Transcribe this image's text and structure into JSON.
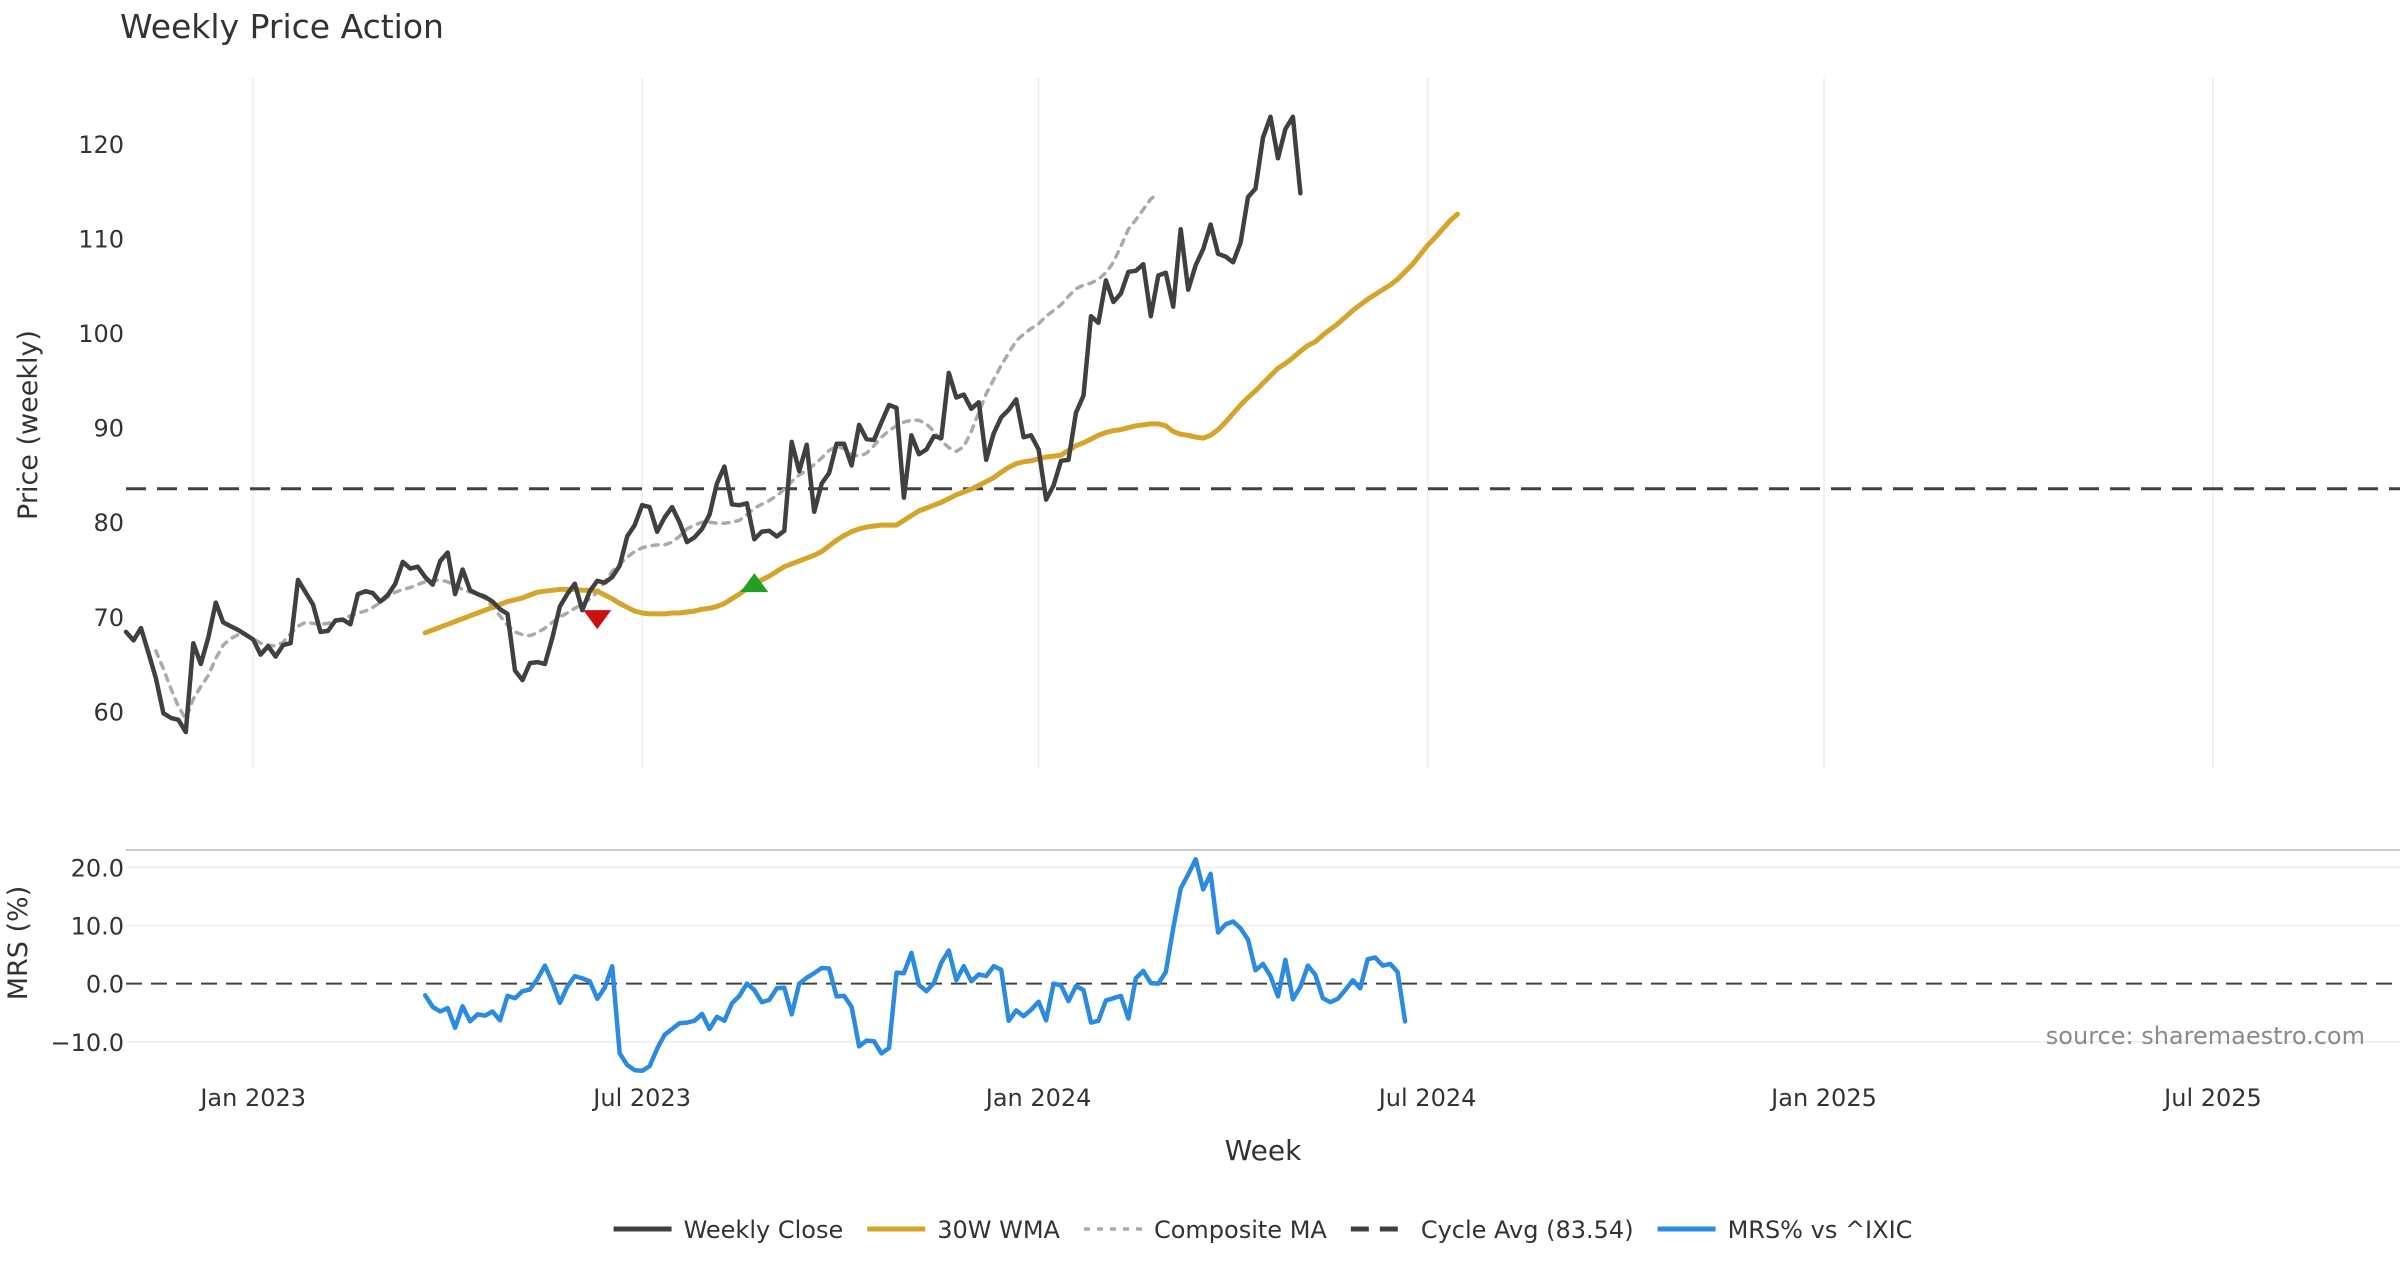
{
  "chart_data": {
    "type": "line",
    "title": "Weekly Price Action",
    "xlabel": "Week",
    "x_tick_labels": [
      "Jan 2023",
      "Jul 2023",
      "Jan 2024",
      "Jul 2024",
      "Jan 2025",
      "Jul 2025"
    ],
    "x_tick_weeks": [
      6,
      58,
      111,
      163,
      216,
      268
    ],
    "week_range": [
      -11,
      293
    ],
    "source_note": "source: sharemaestro.com",
    "legend_position": "bottom-center",
    "price_panel": {
      "ylabel": "Price (weekly)",
      "ylim": [
        54,
        127
      ],
      "yticks": [
        60,
        70,
        80,
        90,
        100,
        110,
        120
      ],
      "cycle_avg_value": 83.54,
      "series": [
        {
          "name": "Weekly Close",
          "color": "#404040",
          "start_week": -11,
          "values": [
            68.4,
            67.5,
            68.8,
            66.2,
            63.5,
            59.8,
            59.3,
            59.1,
            57.8,
            67.2,
            65.0,
            67.8,
            71.5,
            69.4,
            69.0,
            68.6,
            68.1,
            67.6,
            66.0,
            66.9,
            65.8,
            67.0,
            67.2,
            73.9,
            72.6,
            71.3,
            68.4,
            68.5,
            69.6,
            69.7,
            69.2,
            72.4,
            72.7,
            72.5,
            71.6,
            72.3,
            73.5,
            75.8,
            75.1,
            75.3,
            74.2,
            73.4,
            75.9,
            76.8,
            72.4,
            75.0,
            72.8,
            72.4,
            72.1,
            71.6,
            70.8,
            70.3,
            64.3,
            63.3,
            65.1,
            65.2,
            65.0,
            67.8,
            71.1,
            72.4,
            73.5,
            70.7,
            72.7,
            73.8,
            73.6,
            74.2,
            75.4,
            78.5,
            79.7,
            81.8,
            81.6,
            79.0,
            80.5,
            81.6,
            80.0,
            77.9,
            78.4,
            79.3,
            80.8,
            84.1,
            85.9,
            81.9,
            81.8,
            82.0,
            78.2,
            79.0,
            79.1,
            78.5,
            79.1,
            88.5,
            85.4,
            88.2,
            81.1,
            84.1,
            85.2,
            88.3,
            88.3,
            86.0,
            90.3,
            88.8,
            88.7,
            90.6,
            92.4,
            92.1,
            82.6,
            89.2,
            87.2,
            87.7,
            89.1,
            88.9,
            95.8,
            93.2,
            93.5,
            92.0,
            92.7,
            86.6,
            89.4,
            91.1,
            91.9,
            93.0,
            89.0,
            89.2,
            87.7,
            82.4,
            83.9,
            86.5,
            86.6,
            91.6,
            93.4,
            101.8,
            101.1,
            105.6,
            103.3,
            104.2,
            106.5,
            106.6,
            107.3,
            101.8,
            106.1,
            106.4,
            102.8,
            111.0,
            104.6,
            107.2,
            108.9,
            111.5,
            108.4,
            108.1,
            107.5,
            109.6,
            114.4,
            115.3,
            120.7,
            122.9,
            118.5,
            121.6,
            122.9,
            114.8
          ]
        },
        {
          "name": "30W WMA",
          "color": "#d4a52a",
          "start_week": 29,
          "values": [
            68.3,
            68.6,
            68.9,
            69.2,
            69.5,
            69.8,
            70.1,
            70.4,
            70.7,
            71.0,
            71.3,
            71.6,
            71.8,
            72.0,
            72.3,
            72.6,
            72.7,
            72.8,
            72.9,
            72.9,
            72.9,
            72.8,
            72.8,
            72.7,
            72.3,
            71.9,
            71.4,
            71.0,
            70.6,
            70.4,
            70.3,
            70.3,
            70.3,
            70.4,
            70.4,
            70.5,
            70.6,
            70.8,
            70.9,
            71.1,
            71.4,
            71.9,
            72.4,
            73.0,
            73.5,
            73.9,
            74.3,
            74.8,
            75.3,
            75.6,
            75.9,
            76.2,
            76.5,
            76.9,
            77.5,
            78.1,
            78.6,
            79.0,
            79.3,
            79.5,
            79.6,
            79.7,
            79.7,
            79.7,
            80.2,
            80.7,
            81.2,
            81.5,
            81.8,
            82.1,
            82.5,
            82.9,
            83.2,
            83.5,
            83.9,
            84.3,
            84.7,
            85.3,
            85.8,
            86.2,
            86.4,
            86.5,
            86.7,
            86.9,
            87.0,
            87.1,
            87.6,
            88.1,
            88.4,
            88.8,
            89.2,
            89.5,
            89.7,
            89.8,
            90.0,
            90.2,
            90.3,
            90.4,
            90.4,
            90.2,
            89.6,
            89.3,
            89.2,
            89.0,
            88.9,
            89.2,
            89.8,
            90.6,
            91.5,
            92.4,
            93.2,
            93.9,
            94.7,
            95.5,
            96.3,
            96.8,
            97.4,
            98.1,
            98.7,
            99.1,
            99.8,
            100.4,
            101.0,
            101.7,
            102.4,
            103.0,
            103.6,
            104.1,
            104.6,
            105.1,
            105.7,
            106.5,
            107.3,
            108.3,
            109.3,
            110.1,
            111.0,
            111.9,
            112.6
          ]
        },
        {
          "name": "Composite MA",
          "color": "#aaaaaa",
          "start_week": -7,
          "values": [
            66.4,
            64.5,
            62.4,
            60.5,
            59.2,
            61.3,
            62.6,
            63.8,
            65.6,
            67.0,
            67.7,
            68.1,
            68.1,
            67.7,
            67.2,
            67.0,
            66.9,
            67.3,
            68.2,
            69.0,
            69.4,
            69.3,
            69.2,
            69.3,
            69.5,
            69.8,
            70.1,
            70.4,
            70.6,
            71.0,
            71.5,
            72.1,
            72.6,
            72.9,
            73.1,
            73.4,
            73.7,
            73.8,
            73.9,
            73.7,
            73.3,
            72.9,
            72.6,
            72.4,
            71.9,
            71.1,
            70.1,
            69.1,
            68.4,
            68.1,
            68.0,
            68.3,
            68.8,
            69.4,
            70.0,
            70.4,
            70.9,
            71.3,
            71.9,
            72.6,
            73.7,
            74.8,
            75.6,
            76.3,
            76.9,
            77.3,
            77.5,
            77.6,
            77.6,
            77.9,
            78.5,
            79.3,
            79.7,
            80.0,
            80.0,
            79.9,
            79.9,
            80.0,
            80.2,
            80.8,
            81.5,
            81.9,
            82.3,
            82.8,
            83.5,
            84.3,
            85.0,
            85.5,
            86.1,
            86.8,
            87.6,
            88.0,
            87.8,
            87.2,
            87.0,
            87.3,
            88.1,
            89.0,
            89.7,
            90.2,
            90.6,
            90.8,
            90.8,
            90.4,
            89.6,
            88.6,
            87.9,
            87.5,
            88.0,
            89.6,
            91.6,
            93.6,
            95.1,
            96.6,
            97.9,
            99.2,
            99.9,
            100.5,
            101.0,
            101.8,
            102.4,
            103.0,
            103.9,
            104.7,
            105.1,
            105.3,
            105.7,
            106.4,
            107.5,
            109.2,
            111.0,
            112.0,
            113.1,
            114.2,
            114.8
          ]
        }
      ],
      "markers": [
        {
          "name": "sell-signal",
          "shape": "triangle-down",
          "color": "#cc1111",
          "week": 52,
          "value": 69.8
        },
        {
          "name": "buy-signal",
          "shape": "triangle-up",
          "color": "#22a022",
          "week": 73,
          "value": 73.5
        }
      ]
    },
    "mrs_panel": {
      "ylabel": "MRS (%)",
      "ylim": [
        -14,
        23
      ],
      "yticks": [
        -10.0,
        0.0,
        10.0,
        20.0
      ],
      "ytick_labels": [
        "−10.0",
        "0.0",
        "10.0",
        "20.0"
      ],
      "series": [
        {
          "name": "MRS% vs ^IXIC",
          "color": "#2b8be0",
          "start_week": 29,
          "values": [
            -2.0,
            -4.0,
            -4.8,
            -4.2,
            -7.6,
            -3.9,
            -6.5,
            -5.3,
            -5.5,
            -4.8,
            -6.3,
            -2.1,
            -2.5,
            -1.3,
            -1.0,
            0.8,
            3.1,
            0.2,
            -3.3,
            -0.5,
            1.3,
            0.9,
            0.4,
            -2.6,
            -0.7,
            3.0,
            -12.0,
            -14.0,
            -14.9,
            -15.0,
            -14.2,
            -11.2,
            -8.8,
            -7.8,
            -6.8,
            -6.7,
            -6.4,
            -5.2,
            -7.8,
            -5.7,
            -6.4,
            -3.4,
            -2.1,
            0.0,
            -1.1,
            -3.2,
            -2.8,
            -0.8,
            -0.7,
            -5.3,
            0.0,
            1.0,
            1.8,
            2.7,
            2.6,
            -2.2,
            -2.1,
            -4.0,
            -10.8,
            -9.8,
            -9.9,
            -12.0,
            -11.1,
            1.9,
            1.8,
            5.3,
            -0.2,
            -1.3,
            0.1,
            3.6,
            5.7,
            0.6,
            3.0,
            0.4,
            1.6,
            1.3,
            3.0,
            2.4,
            -6.4,
            -4.6,
            -5.6,
            -4.5,
            -3.1,
            -6.3,
            0.0,
            -0.3,
            -3.0,
            -0.4,
            -1.1,
            -6.7,
            -6.4,
            -2.9,
            -2.5,
            -2.1,
            -6.0,
            0.9,
            2.2,
            0.1,
            0.0,
            2.0,
            9.5,
            16.4,
            18.8,
            21.4,
            16.2,
            18.9,
            8.8,
            10.2,
            10.7,
            9.5,
            7.6,
            2.3,
            3.4,
            1.3,
            -2.2,
            4.1,
            -2.7,
            -0.5,
            3.1,
            1.5,
            -2.5,
            -3.2,
            -2.6,
            -1.1,
            0.6,
            -0.8,
            4.2,
            4.5,
            3.1,
            3.4,
            2.0,
            -6.5
          ]
        }
      ]
    },
    "legend": [
      {
        "label": "Weekly Close",
        "style": "solid",
        "color": "#404040"
      },
      {
        "label": "30W WMA",
        "style": "solid",
        "color": "#d4a52a"
      },
      {
        "label": "Composite MA",
        "style": "dotted",
        "color": "#aaaaaa"
      },
      {
        "label": "Cycle Avg (83.54)",
        "style": "dashed",
        "color": "#404040"
      },
      {
        "label": "MRS% vs ^IXIC",
        "style": "solid",
        "color": "#2b8be0"
      }
    ]
  }
}
